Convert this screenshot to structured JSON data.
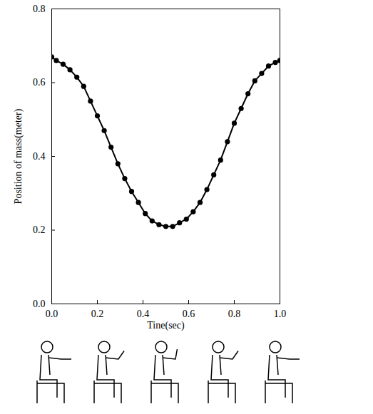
{
  "chart_data": {
    "type": "line",
    "marker": "circle",
    "color": "#000000",
    "xlabel": "Tine(sec)",
    "ylabel": "Position of mass(meter)",
    "x": [
      0.0,
      0.02,
      0.05,
      0.08,
      0.11,
      0.14,
      0.17,
      0.2,
      0.23,
      0.26,
      0.29,
      0.32,
      0.35,
      0.38,
      0.41,
      0.44,
      0.47,
      0.5,
      0.53,
      0.56,
      0.59,
      0.62,
      0.65,
      0.68,
      0.71,
      0.74,
      0.77,
      0.8,
      0.83,
      0.86,
      0.89,
      0.92,
      0.95,
      0.98,
      1.0
    ],
    "values": [
      0.67,
      0.66,
      0.65,
      0.635,
      0.615,
      0.59,
      0.55,
      0.51,
      0.47,
      0.425,
      0.38,
      0.34,
      0.305,
      0.275,
      0.245,
      0.225,
      0.215,
      0.21,
      0.21,
      0.22,
      0.23,
      0.25,
      0.275,
      0.31,
      0.35,
      0.39,
      0.44,
      0.49,
      0.53,
      0.57,
      0.605,
      0.625,
      0.645,
      0.655,
      0.66
    ],
    "xlim": [
      0,
      1.0
    ],
    "xticks": [
      {
        "value": 0,
        "label": "0.0"
      },
      {
        "value": 0.2,
        "label": "0.2"
      },
      {
        "value": 0.4,
        "label": "0.4"
      },
      {
        "value": 0.6,
        "label": "0.6"
      },
      {
        "value": 0.8,
        "label": "0.8"
      },
      {
        "value": 1.0,
        "label": "1.0"
      }
    ],
    "ylim": [
      0,
      0.8
    ],
    "yticks": [
      {
        "value": 0,
        "label": "0.0"
      },
      {
        "value": 0.2,
        "label": "0.2"
      },
      {
        "value": 0.4,
        "label": "0.4"
      },
      {
        "value": 0.6,
        "label": "0.6"
      },
      {
        "value": 0.8,
        "label": "0.8"
      }
    ],
    "grid": false
  }
}
